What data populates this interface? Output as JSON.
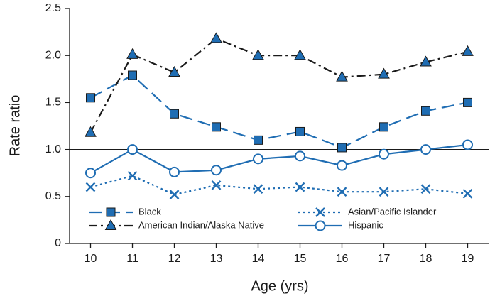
{
  "chart_data": {
    "type": "line",
    "categories": [
      "10",
      "11",
      "12",
      "13",
      "14",
      "15",
      "16",
      "17",
      "18",
      "19"
    ],
    "series": [
      {
        "name": "Black",
        "color": "#1f6db3",
        "marker_color": "#1f6db3",
        "marker": "square",
        "line_style": "dashed",
        "values": [
          1.55,
          1.79,
          1.38,
          1.24,
          1.1,
          1.19,
          1.02,
          1.24,
          1.41,
          1.5
        ]
      },
      {
        "name": "American Indian/Alaska Native",
        "color": "#1a1a1a",
        "marker_color": "#1f6db3",
        "marker": "triangle",
        "line_style": "dashdot",
        "values": [
          1.18,
          2.01,
          1.82,
          2.18,
          2.0,
          2.0,
          1.77,
          1.8,
          1.93,
          2.04
        ]
      },
      {
        "name": "Asian/Pacific Islander",
        "color": "#1f6db3",
        "marker_color": "#1f6db3",
        "marker": "x",
        "line_style": "dotted",
        "values": [
          0.6,
          0.72,
          0.52,
          0.62,
          0.58,
          0.6,
          0.55,
          0.55,
          0.58,
          0.53
        ]
      },
      {
        "name": "Hispanic",
        "color": "#1f6db3",
        "marker_color": "#1f6db3",
        "marker": "circle",
        "line_style": "solid",
        "values": [
          0.75,
          1.0,
          0.76,
          0.78,
          0.9,
          0.93,
          0.83,
          0.95,
          1.0,
          1.05
        ]
      }
    ],
    "xlabel": "Age (yrs)",
    "ylabel": "Rate ratio",
    "ylim": [
      0,
      2.5
    ],
    "yticks": [
      0,
      0.5,
      {
        "value": 1,
        "label": "1.0"
      },
      1.5,
      {
        "value": 2,
        "label": "2.0"
      },
      2.5
    ],
    "reference_line": 1,
    "legend": "lower left",
    "grid": false
  }
}
